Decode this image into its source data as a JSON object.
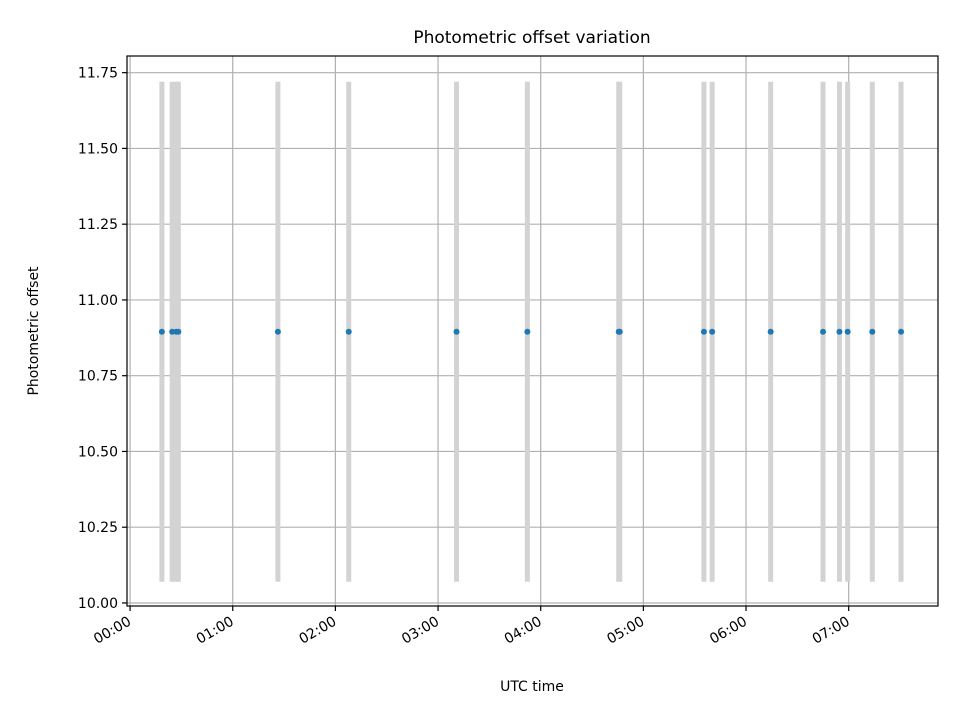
{
  "chart_data": {
    "type": "scatter",
    "title": "Photometric offset variation",
    "xlabel": "UTC time",
    "ylabel": "Photometric offset",
    "x_unit": "hours UTC",
    "xlim": [
      -0.03,
      7.87
    ],
    "ylim": [
      9.99,
      11.805
    ],
    "x_ticks": [
      0,
      1,
      2,
      3,
      4,
      5,
      6,
      7
    ],
    "x_tick_labels": [
      "00:00",
      "01:00",
      "02:00",
      "03:00",
      "04:00",
      "05:00",
      "06:00",
      "07:00"
    ],
    "y_ticks": [
      10.0,
      10.25,
      10.5,
      10.75,
      11.0,
      11.25,
      11.5,
      11.75
    ],
    "y_tick_labels": [
      "10.00",
      "10.25",
      "10.50",
      "10.75",
      "11.00",
      "11.25",
      "11.50",
      "11.75"
    ],
    "grid": true,
    "error_bar_color": "#d3d3d3",
    "point_color": "#1f77b4",
    "points": [
      {
        "x": 0.31,
        "y": 10.895,
        "ylow": 10.07,
        "yhigh": 11.72
      },
      {
        "x": 0.41,
        "y": 10.895,
        "ylow": 10.07,
        "yhigh": 11.72
      },
      {
        "x": 0.45,
        "y": 10.895,
        "ylow": 10.07,
        "yhigh": 11.72
      },
      {
        "x": 0.47,
        "y": 10.895,
        "ylow": 10.07,
        "yhigh": 11.72
      },
      {
        "x": 1.44,
        "y": 10.895,
        "ylow": 10.07,
        "yhigh": 11.72
      },
      {
        "x": 2.13,
        "y": 10.895,
        "ylow": 10.07,
        "yhigh": 11.72
      },
      {
        "x": 3.18,
        "y": 10.895,
        "ylow": 10.07,
        "yhigh": 11.72
      },
      {
        "x": 3.87,
        "y": 10.895,
        "ylow": 10.07,
        "yhigh": 11.72
      },
      {
        "x": 4.76,
        "y": 10.895,
        "ylow": 10.07,
        "yhigh": 11.72
      },
      {
        "x": 4.77,
        "y": 10.895,
        "ylow": 10.07,
        "yhigh": 11.72
      },
      {
        "x": 5.59,
        "y": 10.895,
        "ylow": 10.07,
        "yhigh": 11.72
      },
      {
        "x": 5.67,
        "y": 10.895,
        "ylow": 10.07,
        "yhigh": 11.72
      },
      {
        "x": 6.24,
        "y": 10.895,
        "ylow": 10.07,
        "yhigh": 11.72
      },
      {
        "x": 6.75,
        "y": 10.895,
        "ylow": 10.07,
        "yhigh": 11.72
      },
      {
        "x": 6.91,
        "y": 10.895,
        "ylow": 10.07,
        "yhigh": 11.72
      },
      {
        "x": 6.99,
        "y": 10.895,
        "ylow": 10.07,
        "yhigh": 11.72
      },
      {
        "x": 7.23,
        "y": 10.895,
        "ylow": 10.07,
        "yhigh": 11.72
      },
      {
        "x": 7.51,
        "y": 10.895,
        "ylow": 10.07,
        "yhigh": 11.72
      }
    ]
  }
}
